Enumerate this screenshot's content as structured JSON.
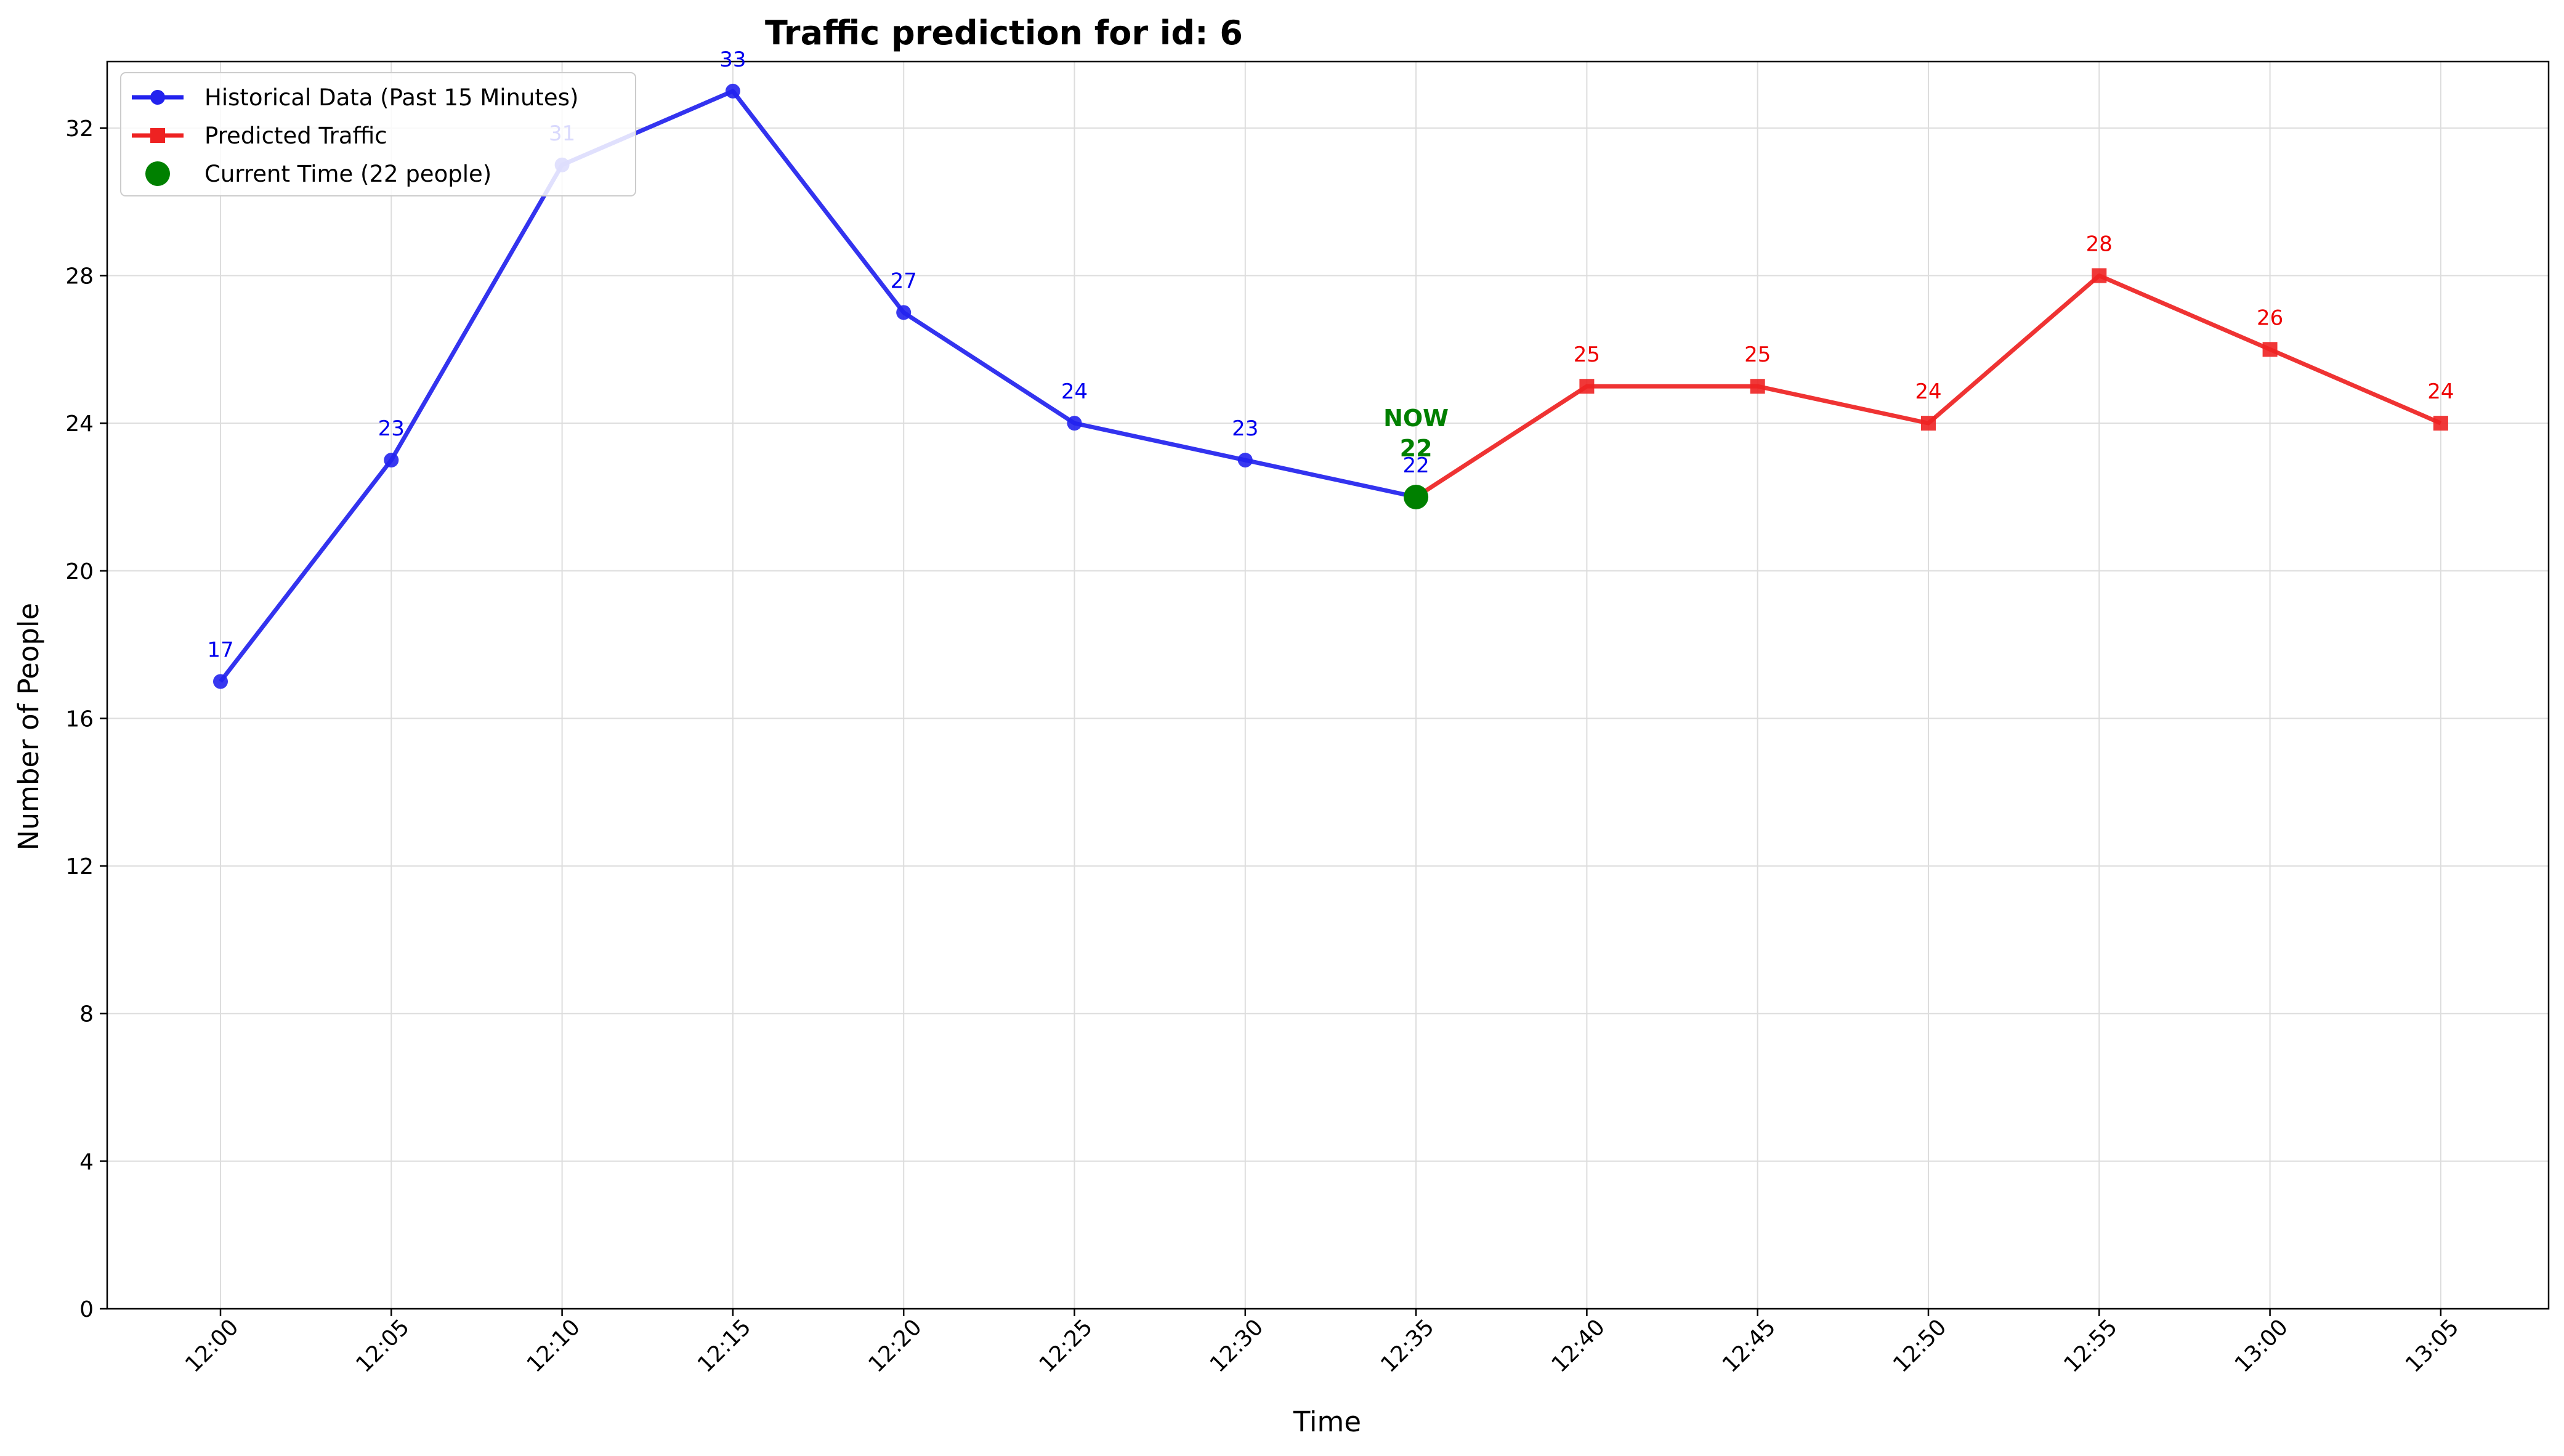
{
  "chart_data": {
    "type": "line",
    "title": "Traffic prediction for id: 6",
    "xlabel": "Time",
    "ylabel": "Number of People",
    "categories": [
      "12:00",
      "12:05",
      "12:10",
      "12:15",
      "12:20",
      "12:25",
      "12:30",
      "12:35",
      "12:40",
      "12:45",
      "12:50",
      "12:55",
      "13:00",
      "13:05"
    ],
    "ylim": [
      0,
      33.8
    ],
    "yticks": [
      0,
      4,
      8,
      12,
      16,
      20,
      24,
      28,
      32
    ],
    "grid": true,
    "legend_position": "top-left",
    "series": [
      {
        "name": "Historical Data (Past 15 Minutes)",
        "color": "#2222ee",
        "marker": "circle",
        "x": [
          "12:00",
          "12:05",
          "12:10",
          "12:15",
          "12:20",
          "12:25",
          "12:30",
          "12:35"
        ],
        "values": [
          17,
          23,
          31,
          33,
          27,
          24,
          23,
          22
        ]
      },
      {
        "name": "Predicted Traffic",
        "color": "#ee2222",
        "marker": "square",
        "x": [
          "12:35",
          "12:40",
          "12:45",
          "12:50",
          "12:55",
          "13:00",
          "13:05"
        ],
        "values": [
          22,
          25,
          25,
          24,
          28,
          26,
          24
        ]
      }
    ],
    "current_point": {
      "name": "Current Time (22 people)",
      "color": "#008000",
      "x": "12:35",
      "value": 22,
      "annotation_line1": "NOW",
      "annotation_line2": "22"
    },
    "data_label_colors": {
      "historical": "#0000ee",
      "predicted": "#ee0000"
    }
  }
}
